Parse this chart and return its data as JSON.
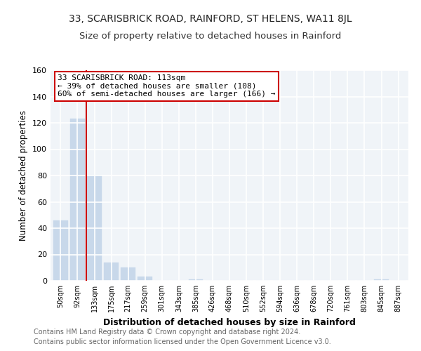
{
  "title": "33, SCARISBRICK ROAD, RAINFORD, ST HELENS, WA11 8JL",
  "subtitle": "Size of property relative to detached houses in Rainford",
  "xlabel": "Distribution of detached houses by size in Rainford",
  "ylabel": "Number of detached properties",
  "bar_labels": [
    "50sqm",
    "92sqm",
    "133sqm",
    "175sqm",
    "217sqm",
    "259sqm",
    "301sqm",
    "343sqm",
    "385sqm",
    "426sqm",
    "468sqm",
    "510sqm",
    "552sqm",
    "594sqm",
    "636sqm",
    "678sqm",
    "720sqm",
    "761sqm",
    "803sqm",
    "845sqm",
    "887sqm"
  ],
  "bar_values": [
    46,
    123,
    80,
    14,
    10,
    3,
    0,
    0,
    1,
    0,
    0,
    0,
    0,
    0,
    0,
    0,
    0,
    0,
    0,
    1,
    0
  ],
  "bar_color": "#c8d8ea",
  "bar_edge_color": "#c8d8ea",
  "property_line_x": 1.5,
  "annotation_title": "33 SCARISBRICK ROAD: 113sqm",
  "annotation_line1": "← 39% of detached houses are smaller (108)",
  "annotation_line2": "60% of semi-detached houses are larger (166) →",
  "annotation_box_color": "#ffffff",
  "annotation_box_edge": "#cc0000",
  "vline_color": "#cc0000",
  "ylim": [
    0,
    160
  ],
  "yticks": [
    0,
    20,
    40,
    60,
    80,
    100,
    120,
    140,
    160
  ],
  "footer1": "Contains HM Land Registry data © Crown copyright and database right 2024.",
  "footer2": "Contains public sector information licensed under the Open Government Licence v3.0.",
  "bg_color": "#ffffff",
  "plot_bg_color": "#f0f4f8",
  "grid_color": "#ffffff",
  "title_fontsize": 10,
  "subtitle_fontsize": 9.5
}
